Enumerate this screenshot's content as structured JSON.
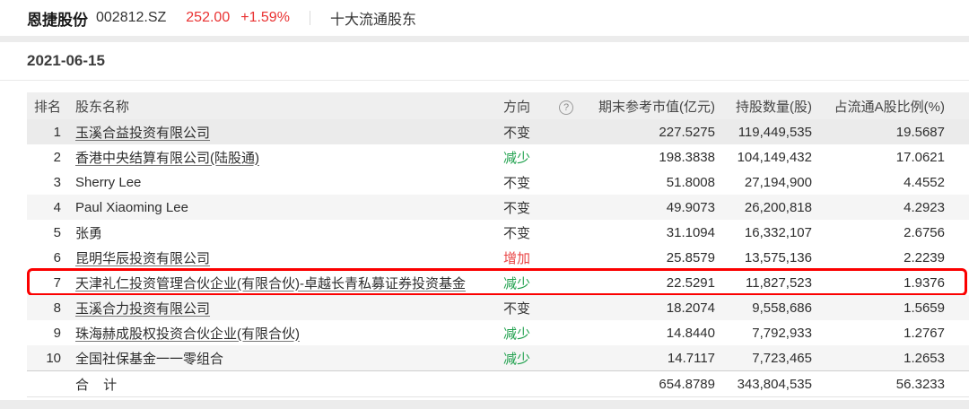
{
  "header": {
    "stock_name": "恩捷股份",
    "stock_code": "002812.SZ",
    "price": "252.00",
    "change_pct": "+1.59%",
    "nav_label": "十大流通股东"
  },
  "date": "2021-06-15",
  "table": {
    "columns": {
      "rank": "排名",
      "name": "股东名称",
      "direction": "方向",
      "help_icon": "?",
      "market_value": "期末参考市值(亿元)",
      "shares": "持股数量(股)",
      "ratio": "占流通A股比例(%)"
    },
    "rows": [
      {
        "rank": "1",
        "name": "玉溪合益投资有限公司",
        "link": true,
        "direction": "不变",
        "dir_type": "unchanged",
        "market_value": "227.5275",
        "shares": "119,449,535",
        "ratio": "19.5687",
        "shade": "dark",
        "highlight": false
      },
      {
        "rank": "2",
        "name": "香港中央结算有限公司(陆股通)",
        "link": true,
        "direction": "减少",
        "dir_type": "decrease",
        "market_value": "198.3838",
        "shares": "104,149,432",
        "ratio": "17.0621",
        "shade": null,
        "highlight": false
      },
      {
        "rank": "3",
        "name": "Sherry Lee",
        "link": false,
        "direction": "不变",
        "dir_type": "unchanged",
        "market_value": "51.8008",
        "shares": "27,194,900",
        "ratio": "4.4552",
        "shade": null,
        "highlight": false
      },
      {
        "rank": "4",
        "name": "Paul Xiaoming Lee",
        "link": false,
        "direction": "不变",
        "dir_type": "unchanged",
        "market_value": "49.9073",
        "shares": "26,200,818",
        "ratio": "4.2923",
        "shade": "light",
        "highlight": false
      },
      {
        "rank": "5",
        "name": "张勇",
        "link": false,
        "direction": "不变",
        "dir_type": "unchanged",
        "market_value": "31.1094",
        "shares": "16,332,107",
        "ratio": "2.6756",
        "shade": null,
        "highlight": false
      },
      {
        "rank": "6",
        "name": "昆明华辰投资有限公司",
        "link": true,
        "direction": "增加",
        "dir_type": "increase",
        "market_value": "25.8579",
        "shares": "13,575,136",
        "ratio": "2.2239",
        "shade": null,
        "highlight": false
      },
      {
        "rank": "7",
        "name": "天津礼仁投资管理合伙企业(有限合伙)-卓越长青私募证券投资基金",
        "link": true,
        "direction": "减少",
        "dir_type": "decrease",
        "market_value": "22.5291",
        "shares": "11,827,523",
        "ratio": "1.9376",
        "shade": null,
        "highlight": true
      },
      {
        "rank": "8",
        "name": "玉溪合力投资有限公司",
        "link": true,
        "direction": "不变",
        "dir_type": "unchanged",
        "market_value": "18.2074",
        "shares": "9,558,686",
        "ratio": "1.5659",
        "shade": "light",
        "highlight": false
      },
      {
        "rank": "9",
        "name": "珠海赫成股权投资合伙企业(有限合伙)",
        "link": true,
        "direction": "减少",
        "dir_type": "decrease",
        "market_value": "14.8440",
        "shares": "7,792,933",
        "ratio": "1.2767",
        "shade": null,
        "highlight": false
      },
      {
        "rank": "10",
        "name": "全国社保基金一一零组合",
        "link": false,
        "direction": "减少",
        "dir_type": "decrease",
        "market_value": "14.7117",
        "shares": "7,723,465",
        "ratio": "1.2653",
        "shade": "light",
        "highlight": false
      }
    ],
    "total": {
      "label": "合 计",
      "market_value": "654.8789",
      "shares": "343,804,535",
      "ratio": "56.3233"
    }
  },
  "colors": {
    "price_red": "#e93232",
    "up_red": "#e94444",
    "down_green": "#1ea04c",
    "highlight_border": "#fb0000"
  }
}
